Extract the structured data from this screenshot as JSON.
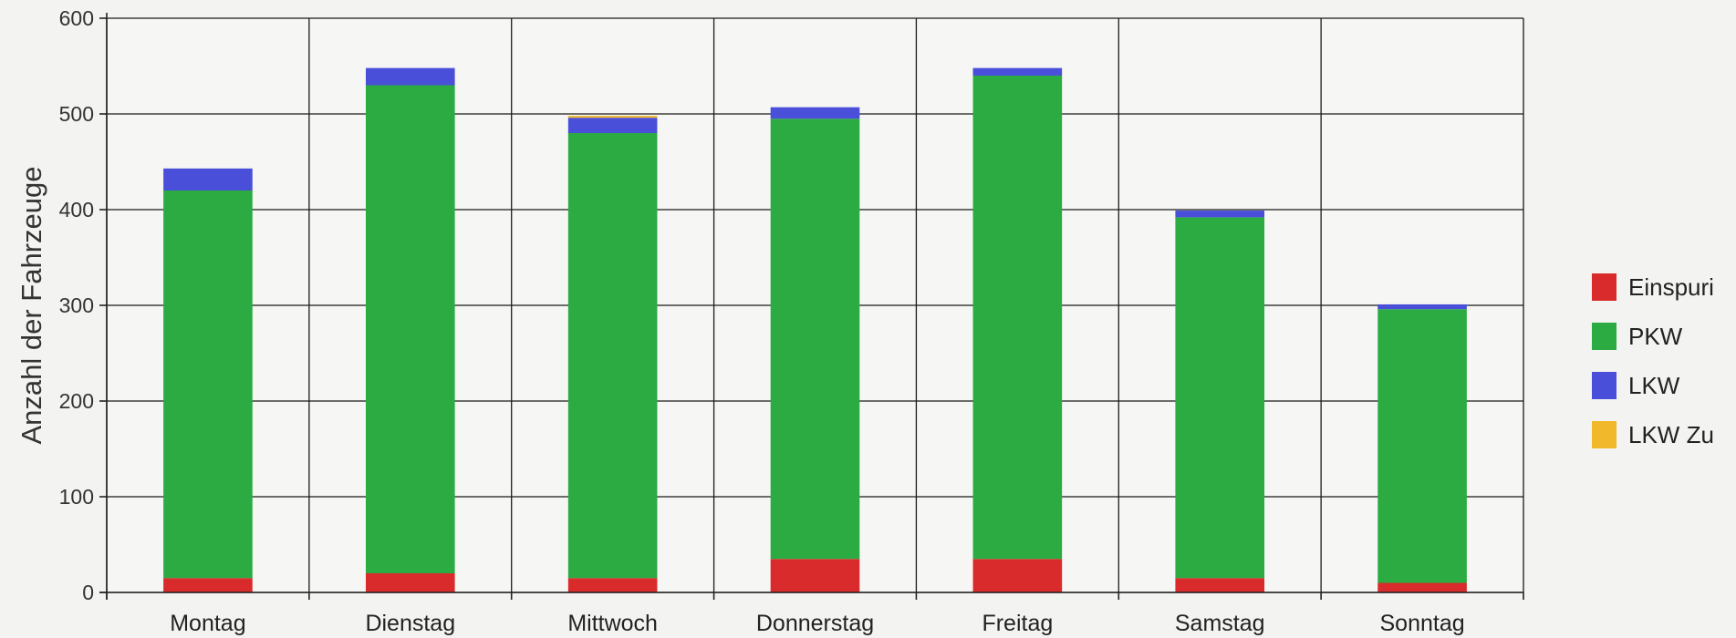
{
  "chart_data": {
    "type": "bar",
    "stacked": true,
    "title": "",
    "xlabel": "",
    "ylabel": "Anzahl der Fahrzeuge",
    "ylim": [
      0,
      600
    ],
    "yticks": [
      "0",
      "100",
      "200",
      "300",
      "400",
      "500",
      "600"
    ],
    "categories": [
      "Montag",
      "Dienstag",
      "Mittwoch",
      "Donnerstag",
      "Freitag",
      "Samstag",
      "Sonntag"
    ],
    "series": [
      {
        "name": "Einspurig",
        "color": "#d92b2b",
        "values": [
          15,
          20,
          15,
          35,
          35,
          15,
          10
        ]
      },
      {
        "name": "PKW",
        "color": "#2bab42",
        "values": [
          405,
          510,
          465,
          460,
          505,
          377,
          286
        ]
      },
      {
        "name": "LKW",
        "color": "#4a4fd9",
        "values": [
          23,
          18,
          16,
          12,
          8,
          7,
          5
        ]
      },
      {
        "name": "LKW Zug",
        "color": "#f0b82a",
        "values": [
          0,
          0,
          2,
          0,
          0,
          0,
          0
        ]
      }
    ],
    "legend_labels": [
      "Einspuri",
      "PKW",
      "LKW",
      "LKW Zu"
    ],
    "grid": true,
    "legend_position": "right"
  }
}
